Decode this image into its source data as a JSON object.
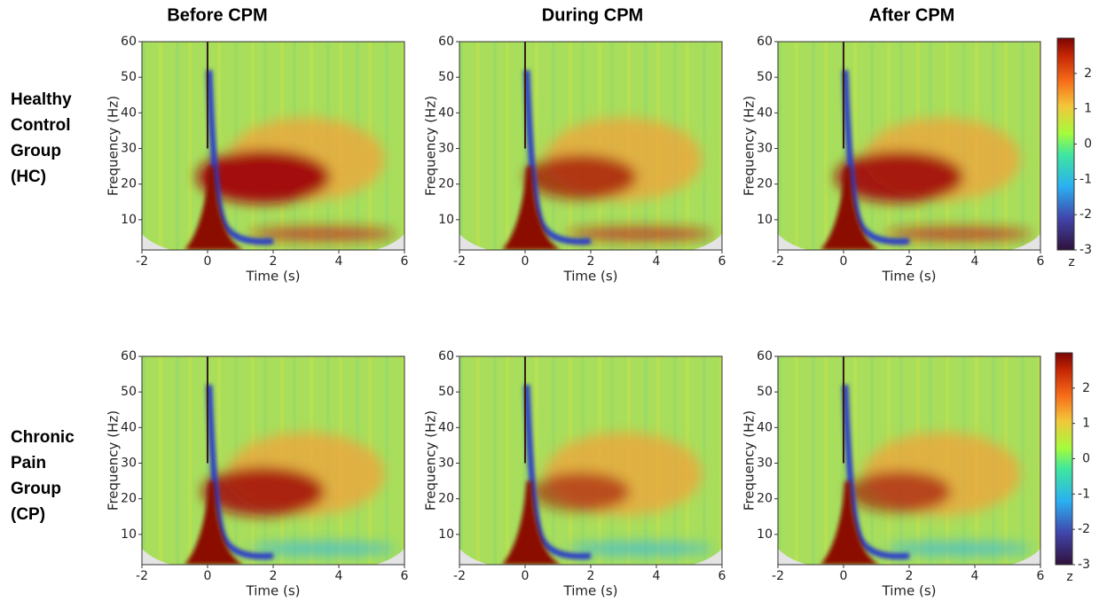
{
  "columns": [
    "Before CPM",
    "During CPM",
    "After CPM"
  ],
  "rows": [
    [
      "Healthy",
      "Control",
      "Group",
      "(HC)"
    ],
    [
      "Chronic",
      "Pain",
      "Group",
      "(CP)"
    ]
  ],
  "chart_data": [
    {
      "type": "heatmap",
      "xlabel": "Time (s)",
      "ylabel": "Frequency (Hz)",
      "xlim": [
        -2,
        6
      ],
      "xticks": [
        -2,
        0,
        2,
        4,
        6
      ],
      "ylim": [
        1.5,
        60
      ],
      "yticks": [
        10,
        20,
        30,
        40,
        50,
        60
      ]
    },
    {
      "type": "heatmap",
      "xlabel": "Time (s)",
      "ylabel": "Frequency (Hz)",
      "xlim": [
        -2,
        6
      ],
      "xticks": [
        -2,
        0,
        2,
        4,
        6
      ],
      "ylim": [
        1.5,
        60
      ],
      "yticks": [
        10,
        20,
        30,
        40,
        50,
        60
      ]
    },
    {
      "type": "heatmap",
      "xlabel": "Time (s)",
      "ylabel": "Frequency (Hz)",
      "xlim": [
        -2,
        6
      ],
      "xticks": [
        -2,
        0,
        2,
        4,
        6
      ],
      "ylim": [
        1.5,
        60
      ],
      "yticks": [
        10,
        20,
        30,
        40,
        50,
        60
      ],
      "colorbar": {
        "label": "z",
        "lim": [
          -3,
          3
        ],
        "ticks": [
          -3,
          -2,
          -1,
          0,
          1,
          2
        ]
      }
    },
    {
      "type": "heatmap",
      "xlabel": "Time (s)",
      "ylabel": "Frequency (Hz)",
      "xlim": [
        -2,
        6
      ],
      "xticks": [
        -2,
        0,
        2,
        4,
        6
      ],
      "ylim": [
        1.5,
        60
      ],
      "yticks": [
        10,
        20,
        30,
        40,
        50,
        60
      ]
    },
    {
      "type": "heatmap",
      "xlabel": "Time (s)",
      "ylabel": "Frequency (Hz)",
      "xlim": [
        -2,
        6
      ],
      "xticks": [
        -2,
        0,
        2,
        4,
        6
      ],
      "ylim": [
        1.5,
        60
      ],
      "yticks": [
        10,
        20,
        30,
        40,
        50,
        60
      ]
    },
    {
      "type": "heatmap",
      "xlabel": "Time (s)",
      "ylabel": "Frequency (Hz)",
      "xlim": [
        -2,
        6
      ],
      "xticks": [
        -2,
        0,
        2,
        4,
        6
      ],
      "ylim": [
        1.5,
        60
      ],
      "yticks": [
        10,
        20,
        30,
        40,
        50,
        60
      ],
      "colorbar": {
        "label": "z",
        "lim": [
          -3,
          3
        ],
        "ticks": [
          -3,
          -2,
          -1,
          0,
          1,
          2
        ]
      }
    }
  ]
}
